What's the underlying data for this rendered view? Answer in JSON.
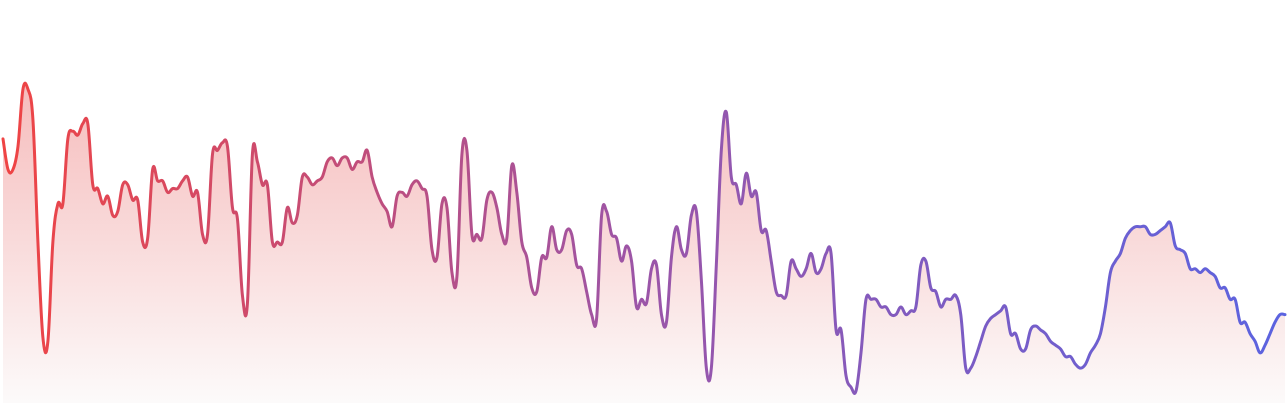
{
  "chart_data": {
    "type": "area",
    "title": "",
    "xlabel": "",
    "ylabel": "",
    "grid": false,
    "legend": "none",
    "axes_visible": false,
    "x": [
      0,
      1,
      2,
      3,
      4,
      5,
      6,
      7,
      8,
      9,
      10,
      11,
      12,
      13,
      14,
      15,
      16,
      17,
      18,
      19,
      20,
      21,
      22,
      23,
      24,
      25,
      26,
      27,
      28,
      29,
      30,
      31,
      32,
      33,
      34,
      35,
      36,
      37,
      38,
      39,
      40,
      41,
      42,
      43,
      44,
      45,
      46,
      47,
      48,
      49,
      50,
      51,
      52,
      53,
      54,
      55,
      56,
      57,
      58,
      59,
      60,
      61,
      62,
      63,
      64,
      65,
      66,
      67,
      68,
      69,
      70,
      71,
      72,
      73,
      74,
      75,
      76,
      77,
      78,
      79,
      80,
      81,
      82,
      83,
      84,
      85,
      86,
      87,
      88,
      89,
      90,
      91,
      92,
      93,
      94,
      95,
      96,
      97,
      98,
      99,
      100,
      101,
      102,
      103,
      104,
      105,
      106,
      107,
      108,
      109,
      110,
      111,
      112,
      113,
      114,
      115,
      116,
      117,
      118,
      119,
      120,
      121,
      122,
      123,
      124,
      125,
      126,
      127,
      128,
      129,
      130,
      131,
      132,
      133,
      134,
      135,
      136,
      137,
      138,
      139,
      140,
      141,
      142,
      143,
      144,
      145,
      146,
      147,
      148,
      149,
      150,
      151,
      152,
      153,
      154,
      155,
      156,
      157,
      158,
      159,
      160,
      161,
      162,
      163,
      164,
      165,
      166,
      167,
      168,
      169,
      170,
      171,
      172,
      173,
      174,
      175,
      176,
      177,
      178,
      179,
      180,
      181,
      182,
      183,
      184,
      185,
      186,
      187,
      188,
      189,
      190,
      191,
      192,
      193,
      194,
      195,
      196,
      197,
      198,
      199,
      200,
      201,
      202,
      203,
      204,
      205,
      206,
      207,
      208,
      209,
      210,
      211,
      212,
      213,
      214,
      215,
      216,
      217,
      218,
      219,
      220,
      221,
      222,
      223,
      224,
      225,
      226,
      227,
      228,
      229,
      230,
      231,
      232,
      233,
      234,
      235,
      236,
      237,
      238,
      239,
      240,
      241,
      242,
      243,
      244,
      245,
      246,
      247,
      248,
      249,
      250,
      251,
      252,
      253,
      254,
      255,
      256,
      257
    ],
    "values": [
      66,
      58,
      58,
      64,
      79,
      79,
      71,
      39,
      14,
      13,
      39,
      49,
      49,
      66,
      68,
      67,
      70,
      70,
      54,
      53,
      49,
      51,
      46,
      47,
      54,
      54,
      50,
      50,
      39,
      40,
      58,
      55,
      55,
      52,
      53,
      53,
      55,
      56,
      51,
      52,
      41,
      41,
      62,
      63,
      65,
      64,
      48,
      45,
      25,
      23,
      62,
      60,
      54,
      54,
      39,
      39,
      39,
      48,
      44,
      46,
      56,
      56,
      54,
      55,
      56,
      60,
      61,
      59,
      61,
      61,
      58,
      60,
      60,
      63,
      56,
      52,
      49,
      47,
      43,
      51,
      52,
      51,
      54,
      55,
      53,
      51,
      37,
      35,
      49,
      48,
      31,
      30,
      62,
      63,
      41,
      41,
      40,
      50,
      52,
      48,
      41,
      40,
      59,
      52,
      39,
      35,
      27,
      26,
      35,
      35,
      43,
      37,
      37,
      42,
      41,
      33,
      32,
      26,
      20,
      19,
      46,
      47,
      41,
      40,
      34,
      38,
      34,
      22,
      24,
      23,
      32,
      33,
      20,
      18,
      35,
      43,
      37,
      36,
      46,
      47,
      29,
      6,
      6,
      33,
      63,
      73,
      56,
      54,
      49,
      57,
      51,
      52,
      42,
      42,
      34,
      26,
      25,
      25,
      34,
      32,
      30,
      32,
      36,
      31,
      32,
      36,
      36,
      16,
      16,
      4,
      1,
      0,
      10,
      24,
      24,
      24,
      22,
      22,
      20,
      20,
      22,
      20,
      21,
      22,
      33,
      34,
      27,
      26,
      22,
      24,
      24,
      25,
      20,
      6,
      6,
      9,
      13,
      17,
      19,
      20,
      21,
      22,
      15,
      15,
      11,
      11,
      16,
      17,
      16,
      15,
      13,
      12,
      11,
      9,
      9,
      7,
      6,
      7,
      10,
      12,
      15,
      22,
      31,
      34,
      36,
      40,
      42,
      43,
      43,
      43,
      41,
      41,
      42,
      43,
      44,
      38,
      37,
      36,
      32,
      32,
      31,
      32,
      31,
      30,
      27,
      27,
      24,
      24,
      18,
      18,
      15,
      13,
      10,
      12,
      15,
      18,
      20,
      20
    ]
  },
  "colors": {
    "start": "#ef4444",
    "middle": "#9b55a8",
    "end": "#5b63e0",
    "fill_top": "#f6bcbc",
    "fill_bottom": "#fcfafa"
  }
}
